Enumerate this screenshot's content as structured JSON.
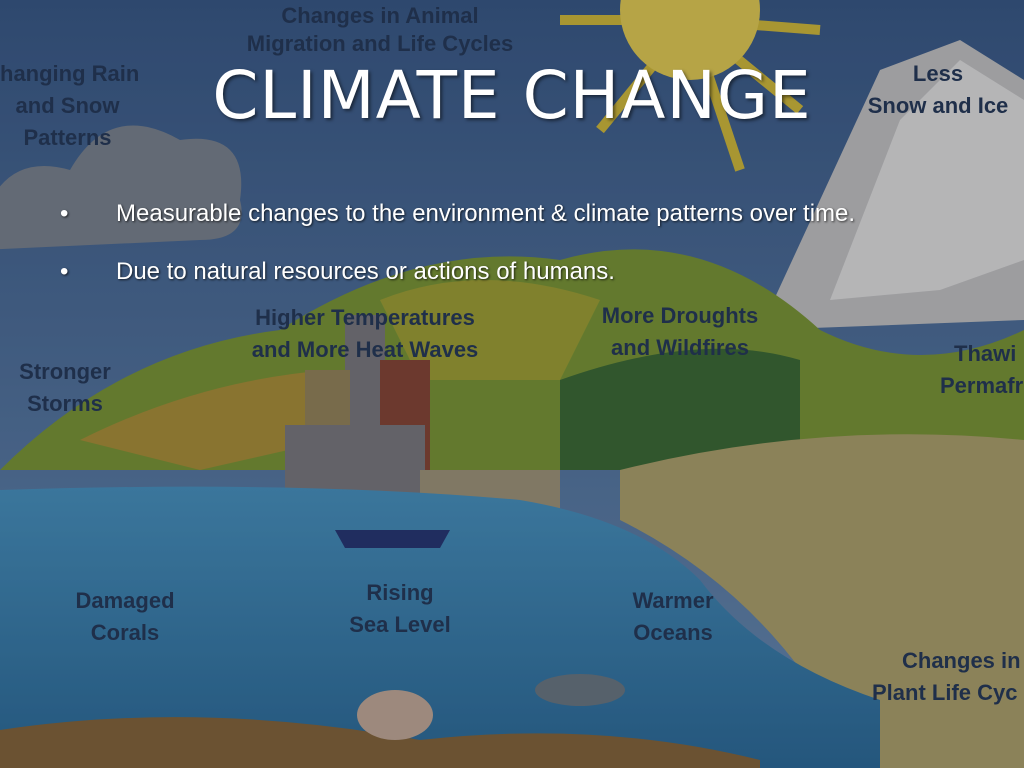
{
  "slide": {
    "title": "CLIMATE CHANGE",
    "bullets": [
      {
        "bullet": "•",
        "text": "Measurable changes to the environment & climate patterns over time."
      },
      {
        "bullet": "•",
        "text": "Due to natural resources or actions of humans."
      }
    ]
  },
  "illustration": {
    "labels": [
      {
        "id": "rain",
        "lines": [
          "hanging Rain",
          "and Snow",
          "Patterns"
        ]
      },
      {
        "id": "migration",
        "lines": [
          "Changes in Animal",
          "Migration and Life Cycles"
        ]
      },
      {
        "id": "snow",
        "lines": [
          "Less",
          "Snow and Ice"
        ]
      },
      {
        "id": "heat",
        "lines": [
          "Higher Temperatures",
          "and More Heat Waves"
        ]
      },
      {
        "id": "droughts",
        "lines": [
          "More Droughts",
          "and Wildfires"
        ]
      },
      {
        "id": "storms",
        "lines": [
          "Stronger",
          "Storms"
        ]
      },
      {
        "id": "permafrost",
        "lines": [
          "Thawi",
          "Permafr"
        ]
      },
      {
        "id": "corals",
        "lines": [
          "Damaged",
          "Corals"
        ]
      },
      {
        "id": "sea",
        "lines": [
          "Rising",
          "Sea Level"
        ]
      },
      {
        "id": "oceans",
        "lines": [
          "Warmer",
          "Oceans"
        ]
      },
      {
        "id": "plants",
        "lines": [
          "Changes in",
          "Plant Life Cyc"
        ]
      }
    ]
  },
  "colors": {
    "sky": "#4a6fa5",
    "water": "#3f8fc4",
    "land": "#8aa83c",
    "sand": "#b59a6a",
    "title": "#ffffff"
  }
}
